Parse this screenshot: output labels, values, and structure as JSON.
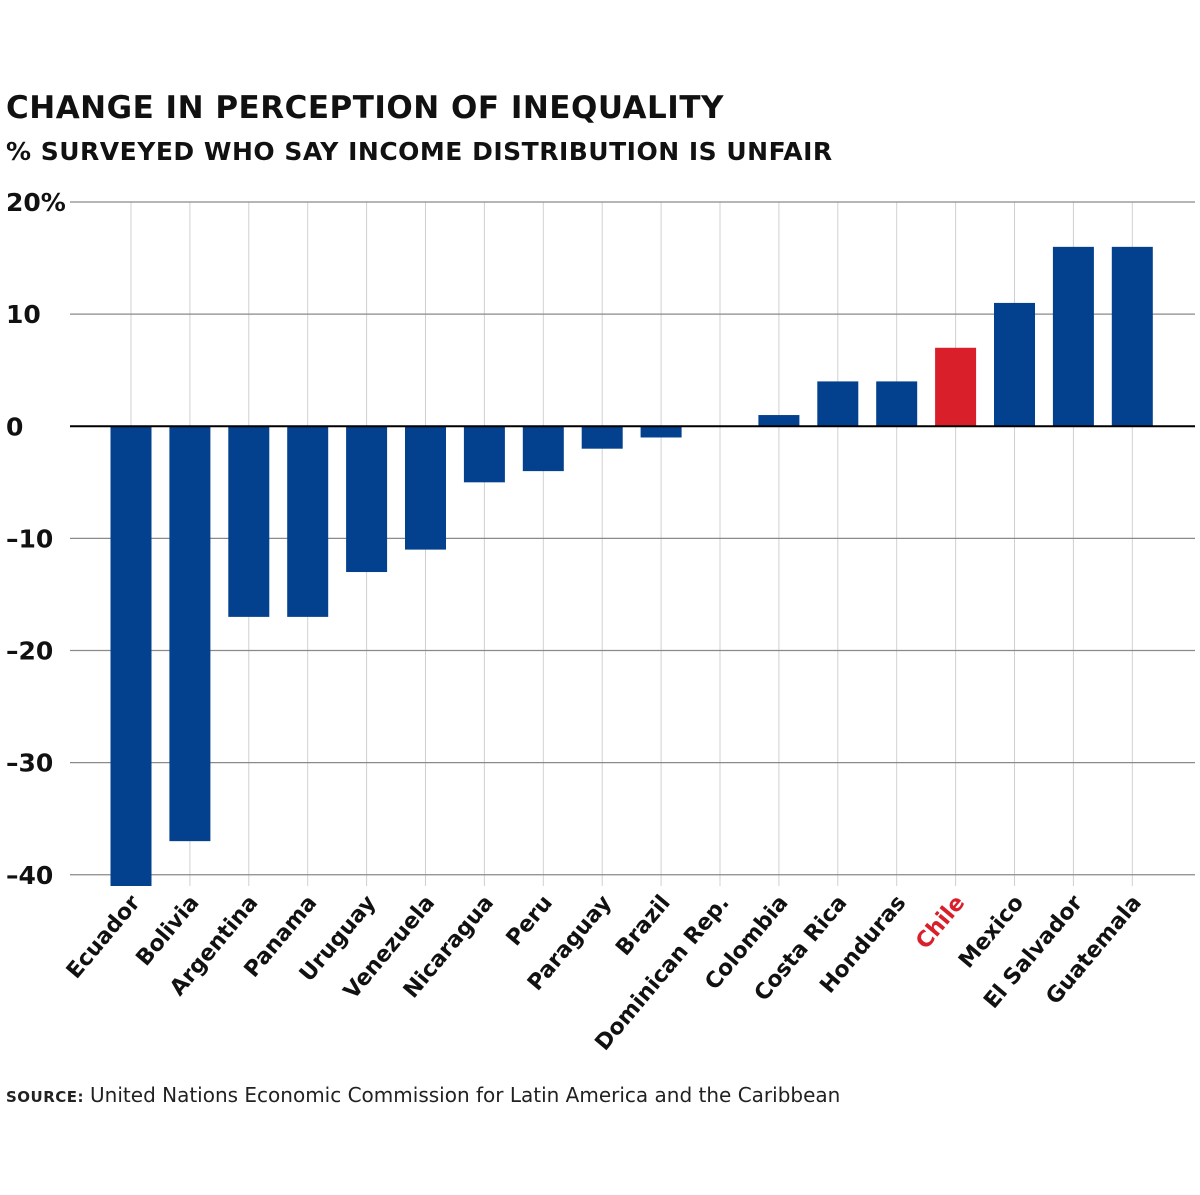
{
  "header": {
    "title": "CHANGE IN PERCEPTION OF INEQUALITY",
    "subtitle": "% SURVEYED WHO SAY INCOME DISTRIBUTION IS UNFAIR"
  },
  "footer": {
    "source_label": "SOURCE:",
    "source_text": "United Nations Economic Commission for Latin America and the Caribbean"
  },
  "colors": {
    "bar": "#03418e",
    "highlight": "#d81f2a",
    "gridline": "#8a8a8a",
    "vertical_grid": "#d0d0d0",
    "zero_line": "#000000",
    "text": "#111111"
  },
  "chart_data": {
    "type": "bar",
    "title": "CHANGE IN PERCEPTION OF INEQUALITY",
    "subtitle": "% SURVEYED WHO SAY INCOME DISTRIBUTION IS UNFAIR",
    "xlabel": "",
    "ylabel": "",
    "categories": [
      "Ecuador",
      "Bolivia",
      "Argentina",
      "Panama",
      "Uruguay",
      "Venezuela",
      "Nicaragua",
      "Peru",
      "Paraguay",
      "Brazil",
      "Dominican Rep.",
      "Colombia",
      "Costa Rica",
      "Honduras",
      "Chile",
      "Mexico",
      "El Salvador",
      "Guatemala"
    ],
    "values": [
      -41,
      -37,
      -17,
      -17,
      -13,
      -11,
      -5,
      -4,
      -2,
      -1,
      0,
      1,
      4,
      4,
      7,
      11,
      16,
      16
    ],
    "highlight": "Chile",
    "ylim": [
      -41,
      20
    ],
    "yticks": [
      20,
      10,
      0,
      -10,
      -20,
      -30,
      -40
    ],
    "ytick_labels": [
      "20%",
      "10",
      "0",
      "–10",
      "–20",
      "–30",
      "–40"
    ],
    "grid": true,
    "legend": "none"
  }
}
